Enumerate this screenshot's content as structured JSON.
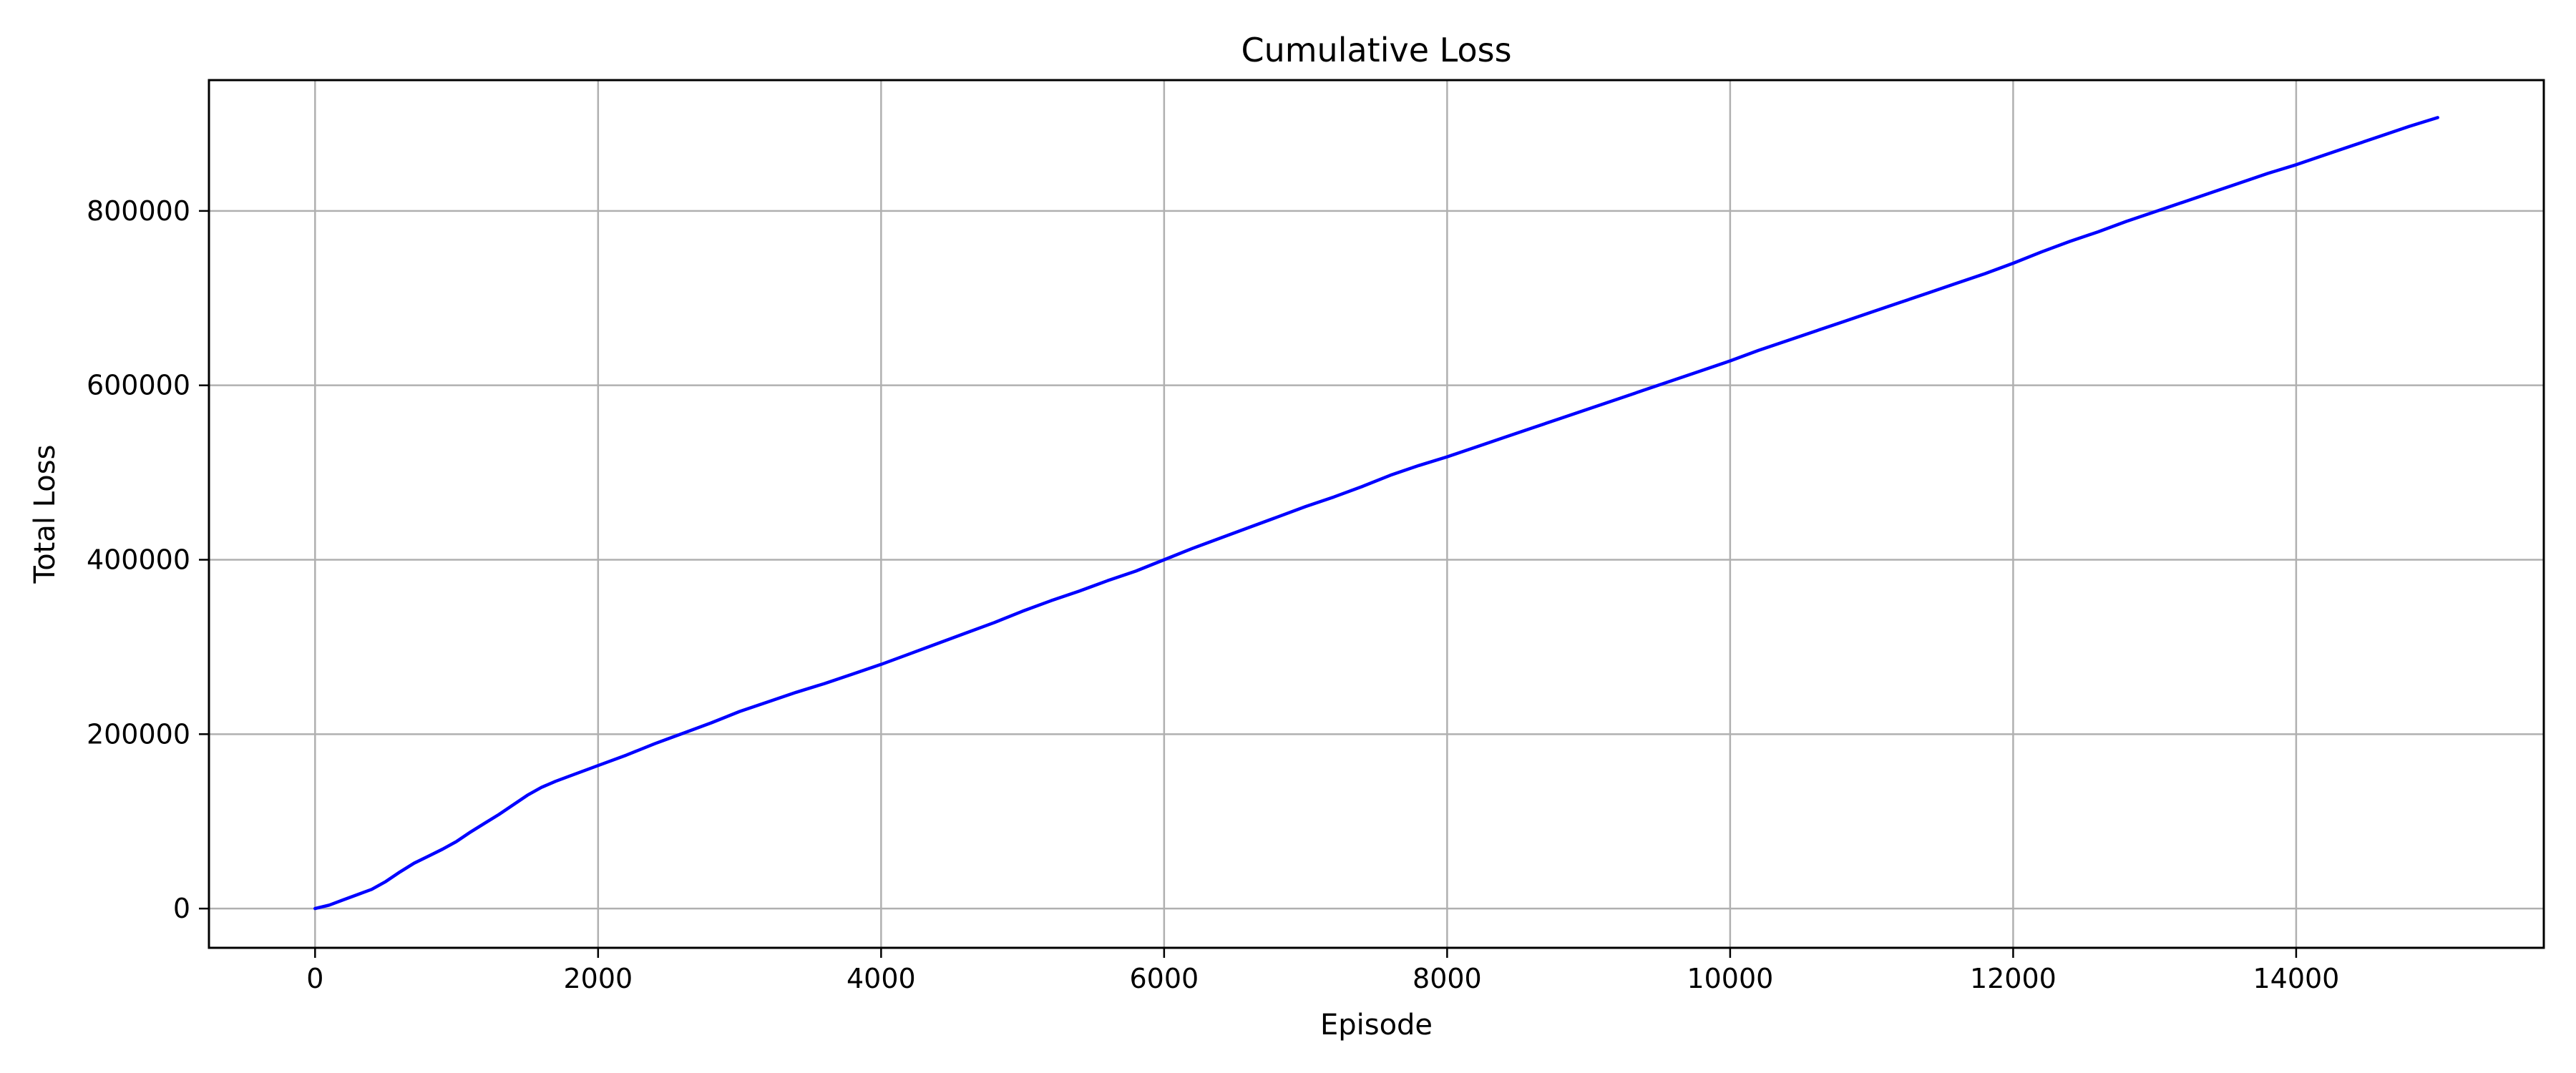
{
  "chart_data": {
    "type": "line",
    "title": "Cumulative Loss",
    "xlabel": "Episode",
    "ylabel": "Total Loss",
    "xlim": [
      -750,
      15750
    ],
    "ylim": [
      -45000,
      950000
    ],
    "x_ticks": [
      0,
      2000,
      4000,
      6000,
      8000,
      10000,
      12000,
      14000
    ],
    "y_ticks": [
      0,
      200000,
      400000,
      600000,
      800000
    ],
    "grid": true,
    "line_color": "#0000ff",
    "grid_color": "#b0b0b0",
    "series": [
      {
        "x": [
          0,
          100,
          200,
          300,
          400,
          500,
          600,
          700,
          800,
          900,
          1000,
          1100,
          1200,
          1300,
          1400,
          1500,
          1600,
          1700,
          1800,
          2000,
          2200,
          2400,
          2500,
          2600,
          2800,
          3000,
          3200,
          3400,
          3600,
          3800,
          4000,
          4200,
          4400,
          4600,
          4800,
          5000,
          5200,
          5400,
          5600,
          5800,
          6000,
          6200,
          6400,
          6600,
          6800,
          7000,
          7200,
          7400,
          7600,
          7800,
          8000,
          8200,
          8400,
          8600,
          8800,
          9000,
          9200,
          9400,
          9600,
          9800,
          10000,
          10200,
          10400,
          10600,
          10800,
          11000,
          11200,
          11400,
          11600,
          11800,
          12000,
          12200,
          12400,
          12600,
          12800,
          13000,
          13200,
          13400,
          13600,
          13800,
          14000,
          14200,
          14400,
          14600,
          14800,
          15000
        ],
        "y": [
          0,
          4000,
          10000,
          16000,
          22000,
          31000,
          42000,
          52000,
          60000,
          68000,
          77000,
          88000,
          98000,
          108000,
          119000,
          130000,
          139000,
          146000,
          152000,
          164000,
          176000,
          189000,
          195000,
          201000,
          213000,
          226000,
          237000,
          248000,
          258000,
          269000,
          280000,
          292000,
          304000,
          316000,
          328000,
          341000,
          353000,
          364000,
          376000,
          387000,
          400000,
          413000,
          425000,
          437000,
          449000,
          461000,
          472000,
          484000,
          497000,
          508000,
          518000,
          529000,
          540000,
          551000,
          562000,
          573000,
          584000,
          595000,
          606000,
          617000,
          628000,
          640000,
          651000,
          662000,
          673000,
          684000,
          695000,
          706000,
          717000,
          728000,
          740000,
          753000,
          765000,
          776000,
          788000,
          799000,
          810000,
          821000,
          832000,
          843000,
          853000,
          864000,
          875000,
          886000,
          897000,
          907000
        ]
      }
    ]
  }
}
